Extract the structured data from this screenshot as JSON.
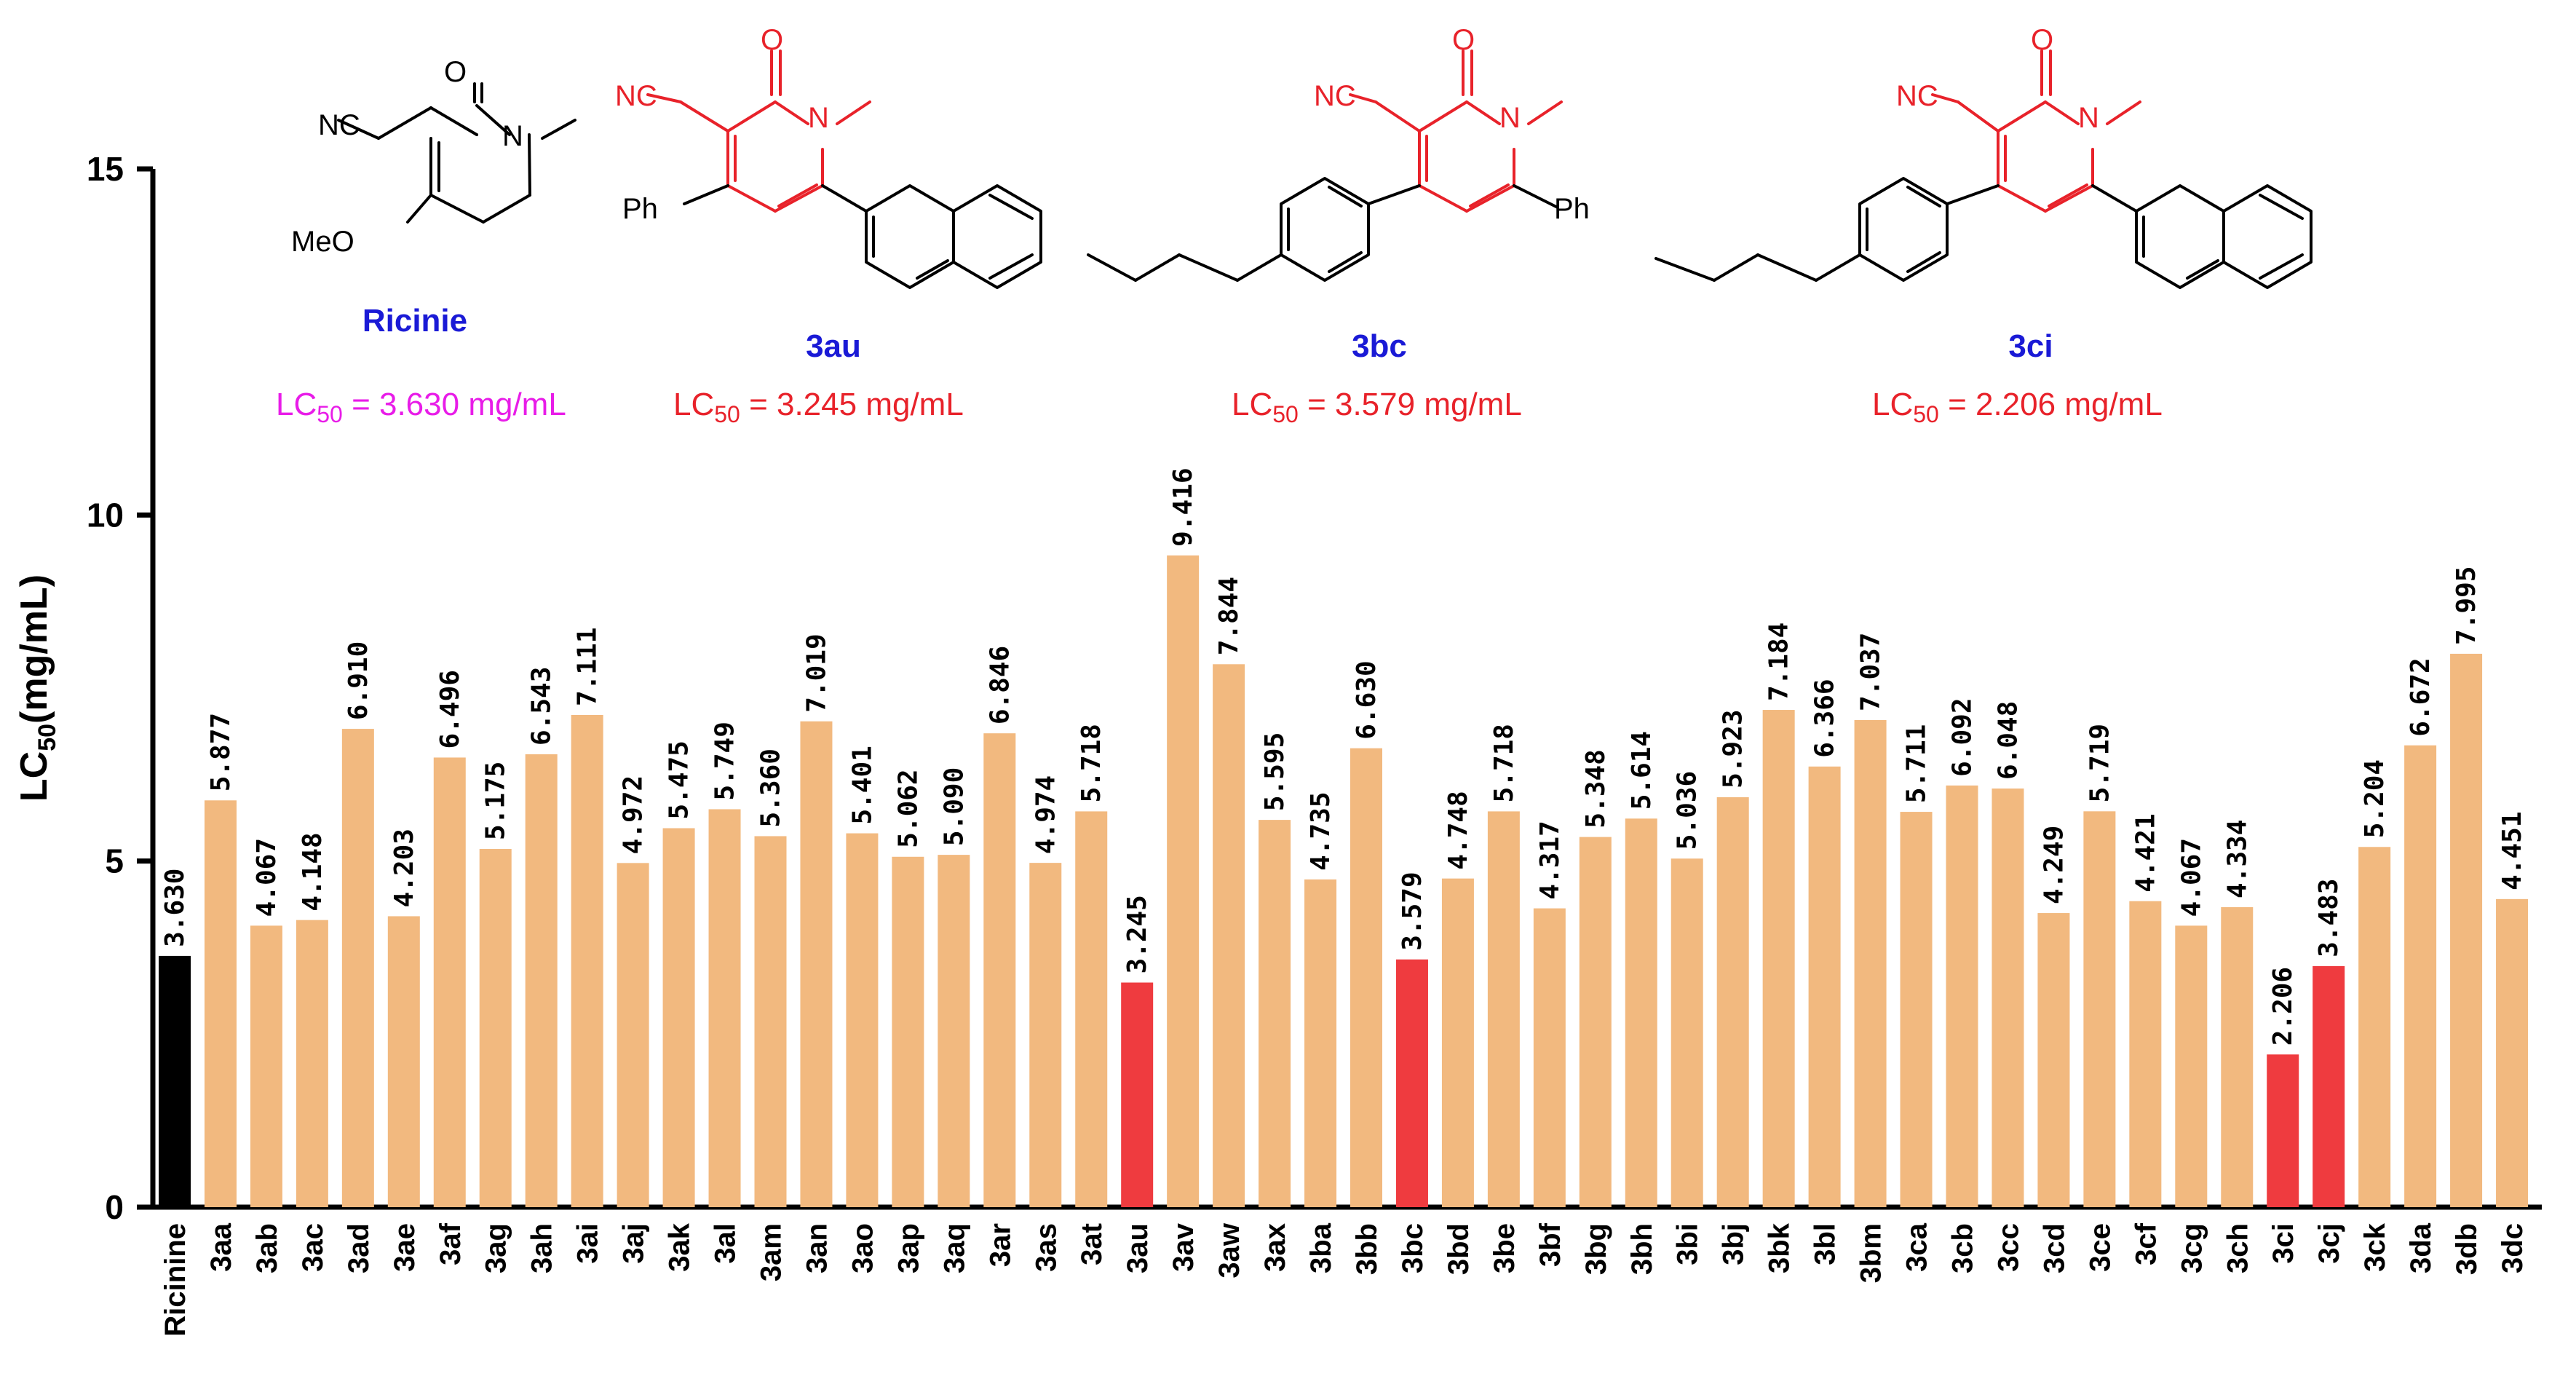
{
  "chart_data": {
    "type": "bar",
    "title": "",
    "xlabel": "",
    "ylabel": "LC50(mg/mL)",
    "ylabel_main": "LC",
    "ylabel_sub": "50",
    "ylabel_unit": "(mg/mL)",
    "ylim": [
      0,
      15
    ],
    "yticks": [
      "0",
      "5",
      "10",
      "15"
    ],
    "categories": [
      "Ricinine",
      "3aa",
      "3ab",
      "3ac",
      "3ad",
      "3ae",
      "3af",
      "3ag",
      "3ah",
      "3ai",
      "3aj",
      "3ak",
      "3al",
      "3am",
      "3an",
      "3ao",
      "3ap",
      "3aq",
      "3ar",
      "3as",
      "3at",
      "3au",
      "3av",
      "3aw",
      "3ax",
      "3ba",
      "3bb",
      "3bc",
      "3bd",
      "3be",
      "3bf",
      "3bg",
      "3bh",
      "3bi",
      "3bj",
      "3bk",
      "3bl",
      "3bm",
      "3ca",
      "3cb",
      "3cc",
      "3cd",
      "3ce",
      "3cf",
      "3cg",
      "3ch",
      "3ci",
      "3cj",
      "3ck",
      "3da",
      "3db",
      "3dc"
    ],
    "values": [
      3.63,
      5.877,
      4.067,
      4.148,
      6.91,
      4.203,
      6.496,
      5.175,
      6.543,
      7.111,
      4.972,
      5.475,
      5.749,
      5.36,
      7.019,
      5.401,
      5.062,
      5.09,
      6.846,
      4.974,
      5.718,
      3.245,
      9.416,
      7.844,
      5.595,
      4.735,
      6.63,
      3.579,
      4.748,
      5.718,
      4.317,
      5.348,
      5.614,
      5.036,
      5.923,
      7.184,
      6.366,
      7.037,
      5.711,
      6.092,
      6.048,
      4.249,
      5.719,
      4.421,
      4.067,
      4.334,
      2.206,
      3.483,
      5.204,
      6.672,
      7.995,
      4.451
    ],
    "value_labels": [
      "3.630",
      "5.877",
      "4.067",
      "4.148",
      "6.910",
      "4.203",
      "6.496",
      "5.175",
      "6.543",
      "7.111",
      "4.972",
      "5.475",
      "5.749",
      "5.360",
      "7.019",
      "5.401",
      "5.062",
      "5.090",
      "6.846",
      "4.974",
      "5.718",
      "3.245",
      "9.416",
      "7.844",
      "5.595",
      "4.735",
      "6.630",
      "3.579",
      "4.748",
      "5.718",
      "4.317",
      "5.348",
      "5.614",
      "5.036",
      "5.923",
      "7.184",
      "6.366",
      "7.037",
      "5.711",
      "6.092",
      "6.048",
      "4.249",
      "5.719",
      "4.421",
      "4.067",
      "4.334",
      "2.206",
      "3.483",
      "5.204",
      "6.672",
      "7.995",
      "4.451"
    ],
    "bar_colors": {
      "reference": "#000000",
      "default": "#f2b97f",
      "highlight": "#ef3b3f"
    },
    "reference_categories": [
      "Ricinine"
    ],
    "highlight_categories": [
      "3au",
      "3bc",
      "3ci",
      "3cj"
    ]
  },
  "structures": [
    {
      "name": "Ricinie",
      "name_color": "#1a1ad6",
      "lc_prefix": "LC",
      "lc_sub": "50",
      "lc_value": " = 3.630 mg/mL",
      "lc_color": "#e81ce8",
      "atoms": {
        "cn": "NC",
        "o": "O",
        "n": "N",
        "sub": "MeO"
      }
    },
    {
      "name": "3au",
      "name_color": "#1a1ad6",
      "lc_prefix": "LC",
      "lc_sub": "50",
      "lc_value": " = 3.245 mg/mL",
      "lc_color": "#e8222a",
      "atoms": {
        "cn": "NC",
        "o": "O",
        "n": "N",
        "sub": "Ph"
      }
    },
    {
      "name": "3bc",
      "name_color": "#1a1ad6",
      "lc_prefix": "LC",
      "lc_sub": "50",
      "lc_value": " = 3.579 mg/mL",
      "lc_color": "#e8222a",
      "atoms": {
        "cn": "NC",
        "o": "O",
        "n": "N",
        "sub": "Ph"
      }
    },
    {
      "name": "3ci",
      "name_color": "#1a1ad6",
      "lc_prefix": "LC",
      "lc_sub": "50",
      "lc_value": " = 2.206 mg/mL",
      "lc_color": "#e8222a",
      "atoms": {
        "cn": "NC",
        "o": "O",
        "n": "N"
      }
    }
  ]
}
